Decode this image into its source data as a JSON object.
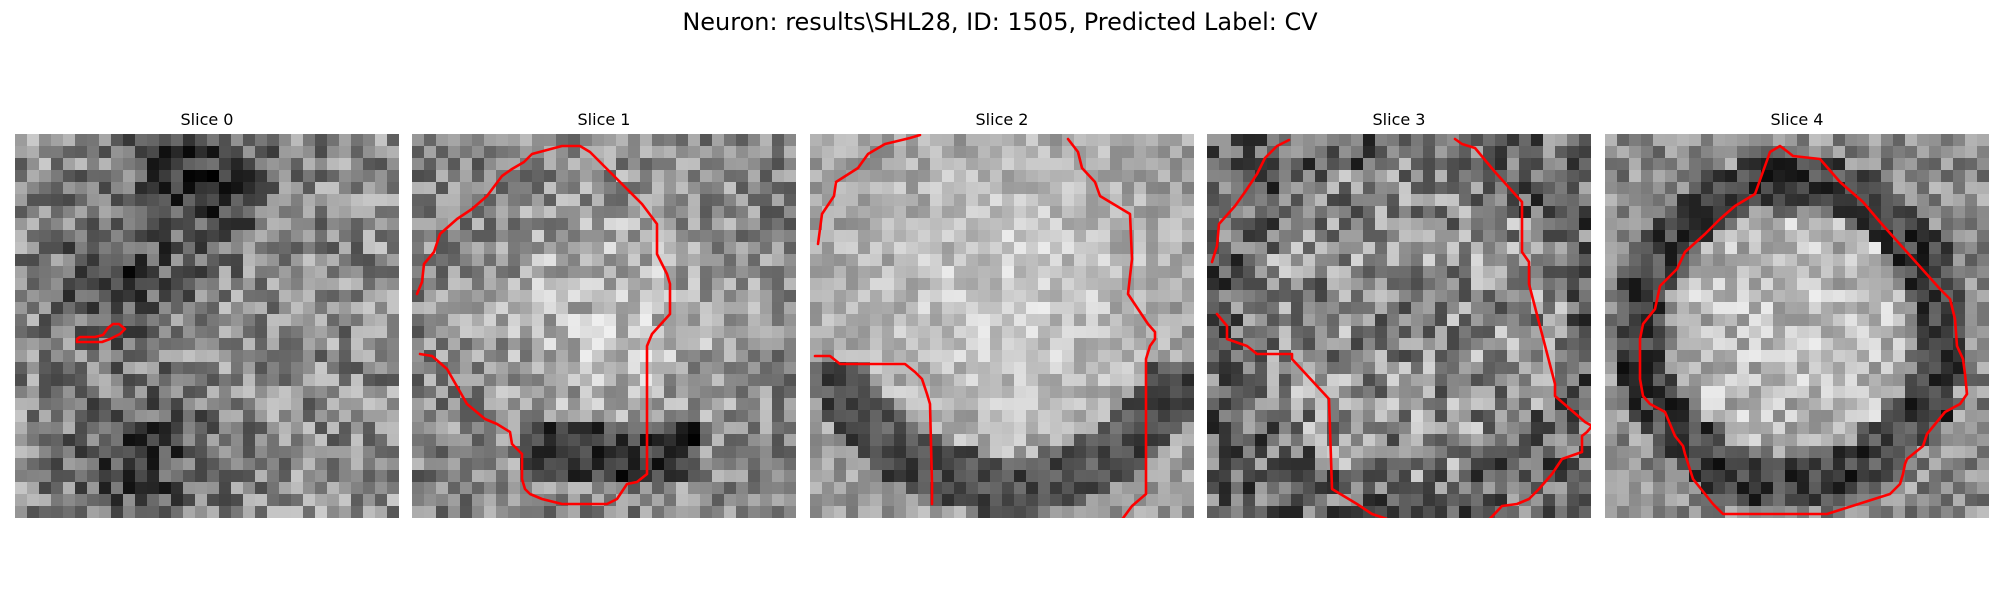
{
  "figure": {
    "title": "Neuron: results\\SHL28, ID: 1505, Predicted Label: CV"
  },
  "colors": {
    "background": "#ffffff",
    "contour": "#ff0000",
    "grayscale_dark": "#000000",
    "grayscale_light": "#ffffff"
  },
  "slices": [
    {
      "label": "Slice 0"
    },
    {
      "label": "Slice 1"
    },
    {
      "label": "Slice 2"
    },
    {
      "label": "Slice 3"
    },
    {
      "label": "Slice 4"
    }
  ]
}
